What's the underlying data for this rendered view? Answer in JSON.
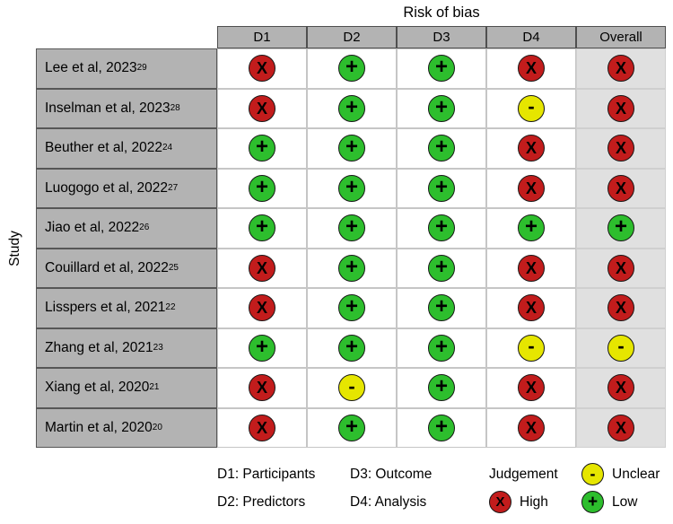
{
  "chart_data": {
    "type": "table",
    "title": "Risk of bias",
    "ylabel": "Study",
    "columns": [
      "D1",
      "D2",
      "D3",
      "D4",
      "Overall"
    ],
    "rows": [
      {
        "study": "Lee et al, 2023",
        "reference": "29",
        "judgements": [
          "high",
          "low",
          "low",
          "high",
          "high"
        ]
      },
      {
        "study": "Inselman et al, 2023",
        "reference": "28",
        "judgements": [
          "high",
          "low",
          "low",
          "unclear",
          "high"
        ]
      },
      {
        "study": "Beuther et al, 2022",
        "reference": "24",
        "judgements": [
          "low",
          "low",
          "low",
          "high",
          "high"
        ]
      },
      {
        "study": "Luogogo et al, 2022",
        "reference": "27",
        "judgements": [
          "low",
          "low",
          "low",
          "high",
          "high"
        ]
      },
      {
        "study": "Jiao et al, 2022",
        "reference": "26",
        "judgements": [
          "low",
          "low",
          "low",
          "low",
          "low"
        ]
      },
      {
        "study": "Couillard et al, 2022",
        "reference": "25",
        "judgements": [
          "high",
          "low",
          "low",
          "high",
          "high"
        ]
      },
      {
        "study": "Lisspers et al, 2021",
        "reference": "22",
        "judgements": [
          "high",
          "low",
          "low",
          "high",
          "high"
        ]
      },
      {
        "study": "Zhang et al, 2021",
        "reference": "23",
        "judgements": [
          "low",
          "low",
          "low",
          "unclear",
          "unclear"
        ]
      },
      {
        "study": "Xiang et al, 2020",
        "reference": "21",
        "judgements": [
          "high",
          "unclear",
          "low",
          "high",
          "high"
        ]
      },
      {
        "study": "Martin et al, 2020",
        "reference": "20",
        "judgements": [
          "high",
          "low",
          "low",
          "high",
          "high"
        ]
      }
    ],
    "symbols": {
      "high": "X",
      "low": "+",
      "unclear": "-"
    },
    "colors": {
      "high": "#c21c1c",
      "low": "#2dbe2d",
      "unclear": "#e6e600",
      "header_bg": "#b3b3b3",
      "overall_bg": "#e0e0e0"
    },
    "legend": {
      "d1": "D1: Participants",
      "d2": "D2: Predictors",
      "d3": "D3: Outcome",
      "d4": "D4: Analysis",
      "judgement_label": "Judgement",
      "levels": [
        {
          "key": "unclear",
          "label": "Unclear",
          "symbol": "-",
          "color": "#e6e600"
        },
        {
          "key": "high",
          "label": "High",
          "symbol": "X",
          "color": "#c21c1c"
        },
        {
          "key": "low",
          "label": "Low",
          "symbol": "+",
          "color": "#2dbe2d"
        }
      ]
    }
  }
}
